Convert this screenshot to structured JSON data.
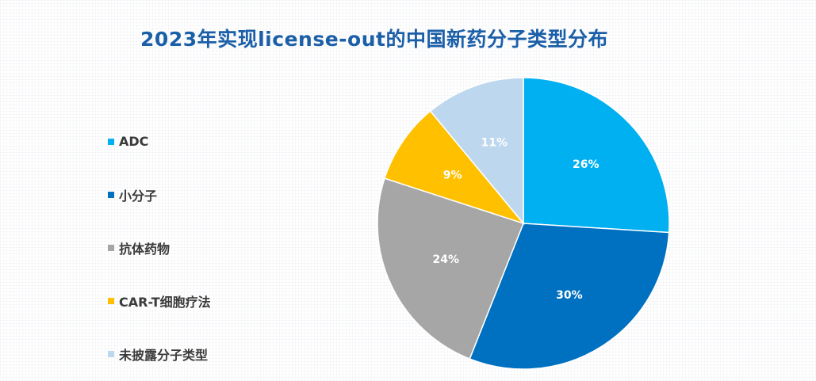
{
  "chart_data": {
    "type": "pie",
    "title": "2023年实现license-out的中国新药分子类型分布",
    "categories": [
      "ADC",
      "小分子",
      "抗体药物",
      "CAR-T细胞疗法",
      "未披露分子类型"
    ],
    "values": [
      26,
      30,
      24,
      9,
      11
    ],
    "labels": [
      "26%",
      "30%",
      "24%",
      "9%",
      "11%"
    ],
    "colors": [
      "#00b0f0",
      "#0070c0",
      "#a6a6a6",
      "#ffc000",
      "#bdd7ee"
    ],
    "start_angle_deg": 0,
    "direction": "clockwise",
    "legend_position": "left"
  }
}
